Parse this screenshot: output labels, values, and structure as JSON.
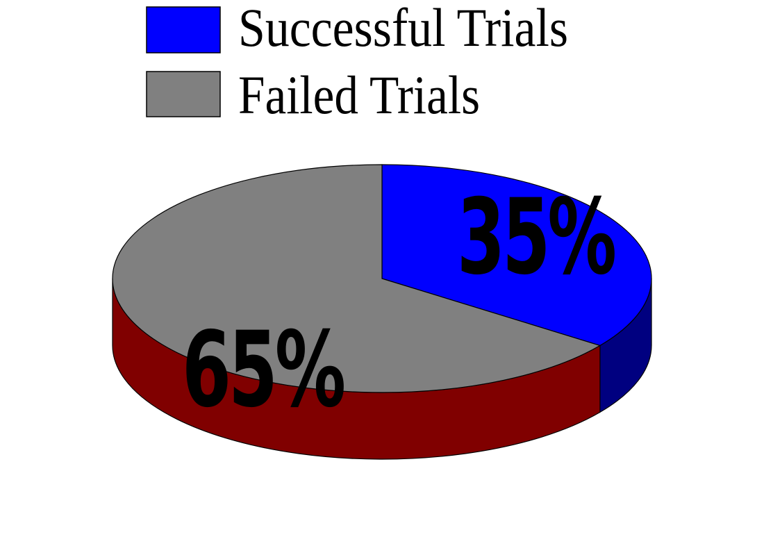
{
  "chart_data": {
    "type": "pie",
    "style": "3d",
    "title": "",
    "categories": [
      "Successful Trials",
      "Failed Trials"
    ],
    "values": [
      35,
      65
    ],
    "data_labels": [
      "35%",
      "65%"
    ],
    "colors": {
      "Successful Trials": "#0000ff",
      "Failed Trials": "#808080",
      "Successful Trials side": "#000080",
      "Failed Trials side": "#800000"
    },
    "legend": {
      "placement": "top",
      "entries": [
        "Successful Trials",
        "Failed Trials"
      ]
    }
  }
}
